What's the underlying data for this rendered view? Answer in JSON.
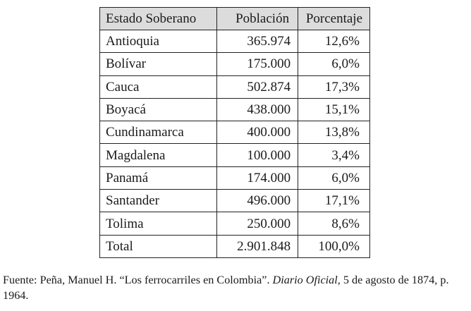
{
  "table": {
    "headers": [
      "Estado Soberano",
      "Población",
      "Porcentaje"
    ],
    "rows": [
      [
        "Antioquia",
        "365.974",
        "12,6%"
      ],
      [
        "Bolívar",
        "175.000",
        "6,0%"
      ],
      [
        "Cauca",
        "502.874",
        "17,3%"
      ],
      [
        "Boyacá",
        "438.000",
        "15,1%"
      ],
      [
        "Cundinamarca",
        "400.000",
        "13,8%"
      ],
      [
        "Magdalena",
        "100.000",
        "3,4%"
      ],
      [
        "Panamá",
        "174.000",
        "6,0%"
      ],
      [
        "Santander",
        "496.000",
        "17,1%"
      ],
      [
        "Tolima",
        "250.000",
        "8,6%"
      ],
      [
        "Total",
        "2.901.848",
        "100,0%"
      ]
    ]
  },
  "source": {
    "prefix": "Fuente: Peña, Manuel H. “Los ferrocarriles en Colombia”. ",
    "journal": "Diario Oficial",
    "suffix": ", 5 de agosto de 1874, p. 1964."
  }
}
